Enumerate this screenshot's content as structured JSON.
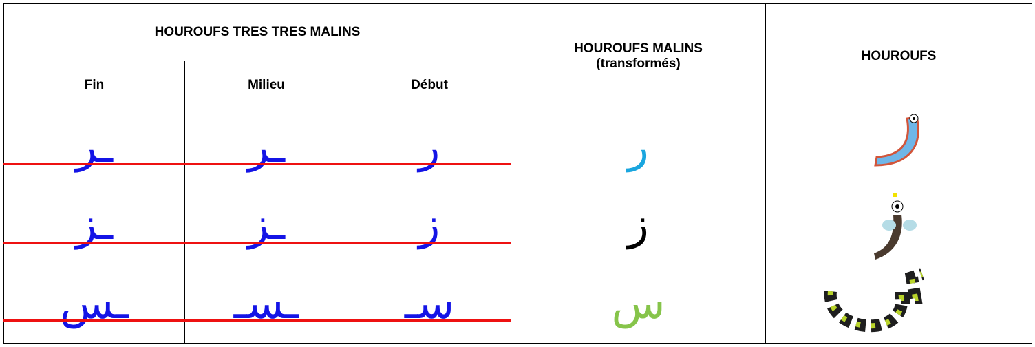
{
  "header": {
    "group_title": "HOUROUFS TRES TRES MALINS",
    "columns": [
      "Fin",
      "Milieu",
      "Début"
    ],
    "malins_title": "HOUROUFS MALINS",
    "malins_subtitle": "(transformés)",
    "hourouf_title": "HOUROUFS"
  },
  "table": {
    "rows": [
      [
        "ـر",
        "ـر",
        "ر",
        "ر"
      ],
      [
        "ـز",
        "ـز",
        "ز",
        "ز"
      ],
      [
        "ـس",
        "ـسـ",
        "سـ",
        "س"
      ]
    ]
  }
}
